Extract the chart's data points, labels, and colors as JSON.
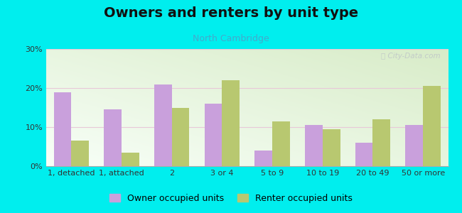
{
  "title": "Owners and renters by unit type",
  "subtitle": "North Cambridge",
  "categories": [
    "1, detached",
    "1, attached",
    "2",
    "3 or 4",
    "5 to 9",
    "10 to 19",
    "20 to 49",
    "50 or more"
  ],
  "owner_values": [
    19,
    14.5,
    21,
    16,
    4,
    10.5,
    6,
    10.5
  ],
  "renter_values": [
    6.5,
    3.5,
    15,
    22,
    11.5,
    9.5,
    12,
    20.5
  ],
  "owner_color": "#c9a0dc",
  "renter_color": "#b8c870",
  "background_color": "#00eeee",
  "ylim": [
    0,
    30
  ],
  "yticks": [
    0,
    10,
    20,
    30
  ],
  "ytick_labels": [
    "0%",
    "10%",
    "20%",
    "30%"
  ],
  "owner_label": "Owner occupied units",
  "renter_label": "Renter occupied units",
  "title_fontsize": 14,
  "subtitle_fontsize": 9,
  "legend_fontsize": 9,
  "tick_fontsize": 8
}
